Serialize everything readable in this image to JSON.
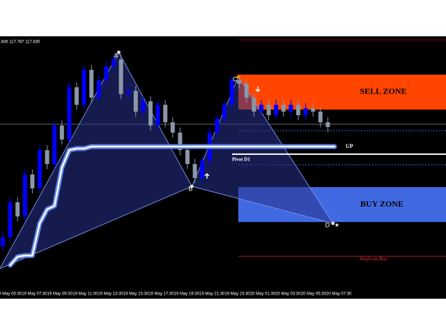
{
  "chart_data": {
    "type": "candlestick",
    "header": ".845 117.787 117.830",
    "ylim": [
      117.0,
      118.0
    ],
    "x_labels": [
      "19 May 05:30",
      "19 May 07:30",
      "19 May 09:30",
      "19 May 11:30",
      "19 May 13:30",
      "19 May 15:30",
      "19 May 17:30",
      "19 May 19:30",
      "19 May 21:30",
      "19 May 23:30",
      "20 May 01:30",
      "20 May 03:30",
      "20 May 05:30",
      "20 May 07:30"
    ],
    "up_color": "#0000ff",
    "down_color": "#8a97a8",
    "open": [
      117.18,
      117.215,
      117.353,
      117.297,
      117.463,
      117.408,
      117.559,
      117.504,
      117.656,
      117.601,
      117.807,
      117.738,
      117.876,
      117.766,
      117.835,
      117.89,
      117.917,
      117.78,
      117.793,
      117.711,
      117.752,
      117.656,
      117.738,
      117.669,
      117.628,
      117.559,
      117.504,
      117.449,
      117.518,
      117.628,
      117.683,
      117.738,
      117.835,
      117.821,
      117.766,
      117.711,
      117.738,
      117.697,
      117.738,
      117.711,
      117.738,
      117.697,
      117.724,
      117.711,
      117.669
    ],
    "high": [
      117.235,
      117.373,
      117.373,
      117.483,
      117.483,
      117.579,
      117.579,
      117.676,
      117.676,
      117.827,
      117.827,
      117.896,
      117.896,
      117.855,
      117.91,
      117.937,
      117.937,
      117.813,
      117.813,
      117.772,
      117.772,
      117.758,
      117.758,
      117.689,
      117.648,
      117.579,
      117.524,
      117.538,
      117.648,
      117.703,
      117.758,
      117.855,
      117.855,
      117.841,
      117.786,
      117.758,
      117.758,
      117.758,
      117.758,
      117.758,
      117.758,
      117.744,
      117.744,
      117.731,
      117.689
    ],
    "low": [
      117.16,
      117.195,
      117.277,
      117.277,
      117.388,
      117.388,
      117.484,
      117.484,
      117.581,
      117.581,
      117.718,
      117.718,
      117.746,
      117.746,
      117.815,
      117.87,
      117.76,
      117.76,
      117.691,
      117.691,
      117.636,
      117.636,
      117.649,
      117.608,
      117.539,
      117.484,
      117.429,
      117.429,
      117.498,
      117.608,
      117.663,
      117.718,
      117.801,
      117.746,
      117.691,
      117.691,
      117.677,
      117.677,
      117.691,
      117.691,
      117.677,
      117.677,
      117.691,
      117.649,
      117.63
    ],
    "close": [
      117.215,
      117.353,
      117.297,
      117.463,
      117.408,
      117.559,
      117.504,
      117.656,
      117.601,
      117.807,
      117.738,
      117.876,
      117.766,
      117.835,
      117.89,
      117.917,
      117.78,
      117.793,
      117.711,
      117.752,
      117.656,
      117.738,
      117.669,
      117.628,
      117.559,
      117.504,
      117.449,
      117.518,
      117.628,
      117.683,
      117.738,
      117.835,
      117.821,
      117.766,
      117.711,
      117.738,
      117.697,
      117.738,
      117.711,
      117.738,
      117.697,
      117.724,
      117.711,
      117.669,
      117.65
    ],
    "band": [
      null,
      117.105,
      117.138,
      117.143,
      117.143,
      117.27,
      117.325,
      117.339,
      117.49,
      117.559,
      117.565,
      117.565,
      117.573,
      117.573,
      117.573,
      117.573,
      117.573,
      117.573,
      117.573,
      117.573,
      117.573,
      117.573,
      117.573,
      117.573,
      117.573,
      117.573,
      117.573,
      117.573,
      117.573,
      117.573,
      117.573,
      117.573,
      117.573,
      117.573,
      117.573,
      117.573,
      117.573,
      117.573,
      117.573,
      117.573,
      117.573,
      117.573,
      117.573,
      117.573,
      117.573
    ],
    "pattern": {
      "x": [
        -0.4,
        15.7,
        25.6,
        31.9,
        44.7
      ],
      "values": [
        117.091,
        117.945,
        117.416,
        117.848,
        117.27
      ],
      "labels": [
        null,
        "A",
        "B",
        "C",
        "D"
      ]
    },
    "sell_zone": {
      "label": "SELL ZONE",
      "values": [
        117.857,
        117.719
      ],
      "color": "#ff4500"
    },
    "buy_zone": {
      "label": "BUY ZONE",
      "values": [
        117.413,
        117.275
      ],
      "color": "#4169e1"
    },
    "up_label": "UP",
    "pivot": {
      "label": "Pivot D1",
      "value": 117.543
    },
    "stoploss": {
      "label": "StopLoss Buy",
      "value": 117.14
    },
    "top_line": 117.994,
    "dotted_levels": [
      117.636,
      117.501
    ]
  }
}
